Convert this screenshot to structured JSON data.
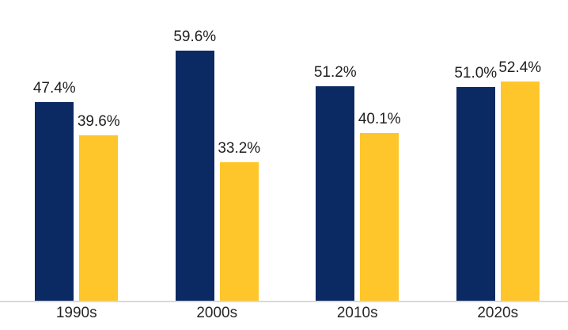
{
  "chart_data": {
    "type": "bar",
    "title": "",
    "xlabel": "",
    "ylabel": "",
    "categories": [
      "1990s",
      "2000s",
      "2010s",
      "2020s"
    ],
    "series": [
      {
        "name": "series-1-navy",
        "color": "#0B2963",
        "values": [
          47.4,
          59.6,
          51.2,
          51.0
        ],
        "labels": [
          "47.4%",
          "59.6%",
          "51.2%",
          "51.0%"
        ]
      },
      {
        "name": "series-2-gold",
        "color": "#FFC62B",
        "values": [
          39.6,
          33.2,
          40.1,
          52.4
        ],
        "labels": [
          "39.6%",
          "33.2%",
          "40.1%",
          "52.4%"
        ]
      }
    ],
    "ylim": [
      0,
      70
    ],
    "grid": false,
    "legend": "none",
    "axis_line_color": "#D9D9D9",
    "label_text_color": "#1F1F1F",
    "background_color": "#FFFFFF"
  }
}
